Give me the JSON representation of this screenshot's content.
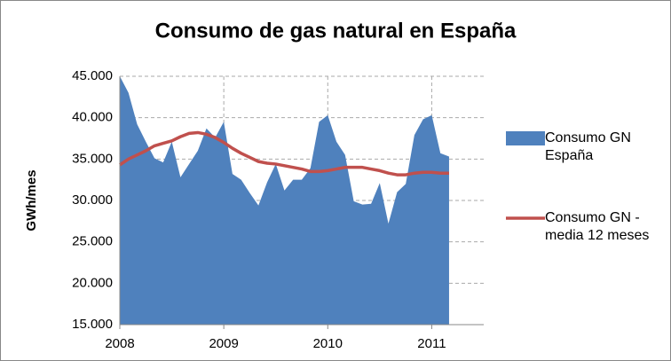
{
  "chart_data": {
    "type": "area_line",
    "title": "Consumo de gas natural en España",
    "ylabel": "GWh/mes",
    "x": [
      2008,
      2008.0833,
      2008.1667,
      2008.25,
      2008.3333,
      2008.4167,
      2008.5,
      2008.5833,
      2008.6667,
      2008.75,
      2008.8333,
      2008.9167,
      2009,
      2009.0833,
      2009.1667,
      2009.25,
      2009.3333,
      2009.4167,
      2009.5,
      2009.5833,
      2009.6667,
      2009.75,
      2009.8333,
      2009.9167,
      2010,
      2010.0833,
      2010.1667,
      2010.25,
      2010.3333,
      2010.4167,
      2010.5,
      2010.5833,
      2010.6667,
      2010.75,
      2010.8333,
      2010.9167,
      2011,
      2011.0833,
      2011.1667
    ],
    "series": [
      {
        "name": "Consumo GN España",
        "kind": "area",
        "color": "#4f81bd",
        "values": [
          45000,
          43000,
          39200,
          37100,
          35100,
          34600,
          37100,
          32800,
          34400,
          36000,
          38700,
          37600,
          39500,
          33200,
          32500,
          30900,
          29400,
          32200,
          34400,
          31200,
          32500,
          32500,
          33900,
          39500,
          40300,
          37100,
          35500,
          29900,
          29500,
          29600,
          32100,
          27200,
          31000,
          32000,
          37900,
          39800,
          40300,
          35700,
          35300
        ]
      },
      {
        "name": "Consumo GN - media 12 meses",
        "kind": "line",
        "color": "#c0504d",
        "values": [
          34300,
          35000,
          35500,
          36000,
          36600,
          36900,
          37200,
          37700,
          38100,
          38200,
          38000,
          37600,
          37000,
          36300,
          35700,
          35200,
          34700,
          34500,
          34400,
          34200,
          34000,
          33800,
          33500,
          33500,
          33600,
          33800,
          34000,
          34000,
          34000,
          33800,
          33600,
          33300,
          33100,
          33100,
          33300,
          33400,
          33400,
          33300,
          33300
        ]
      }
    ],
    "xlim": [
      2008,
      2011.5
    ],
    "xticks": [
      2008,
      2009,
      2010,
      2011
    ],
    "ylim": [
      15000,
      45000
    ],
    "yticks": [
      {
        "value": 15000,
        "label": "15.000"
      },
      {
        "value": 20000,
        "label": "20.000"
      },
      {
        "value": 25000,
        "label": "25.000"
      },
      {
        "value": 30000,
        "label": "30.000"
      },
      {
        "value": 35000,
        "label": "35.000"
      },
      {
        "value": 40000,
        "label": "40.000"
      },
      {
        "value": 45000,
        "label": "45.000"
      }
    ],
    "grid": true,
    "legend": "right"
  }
}
